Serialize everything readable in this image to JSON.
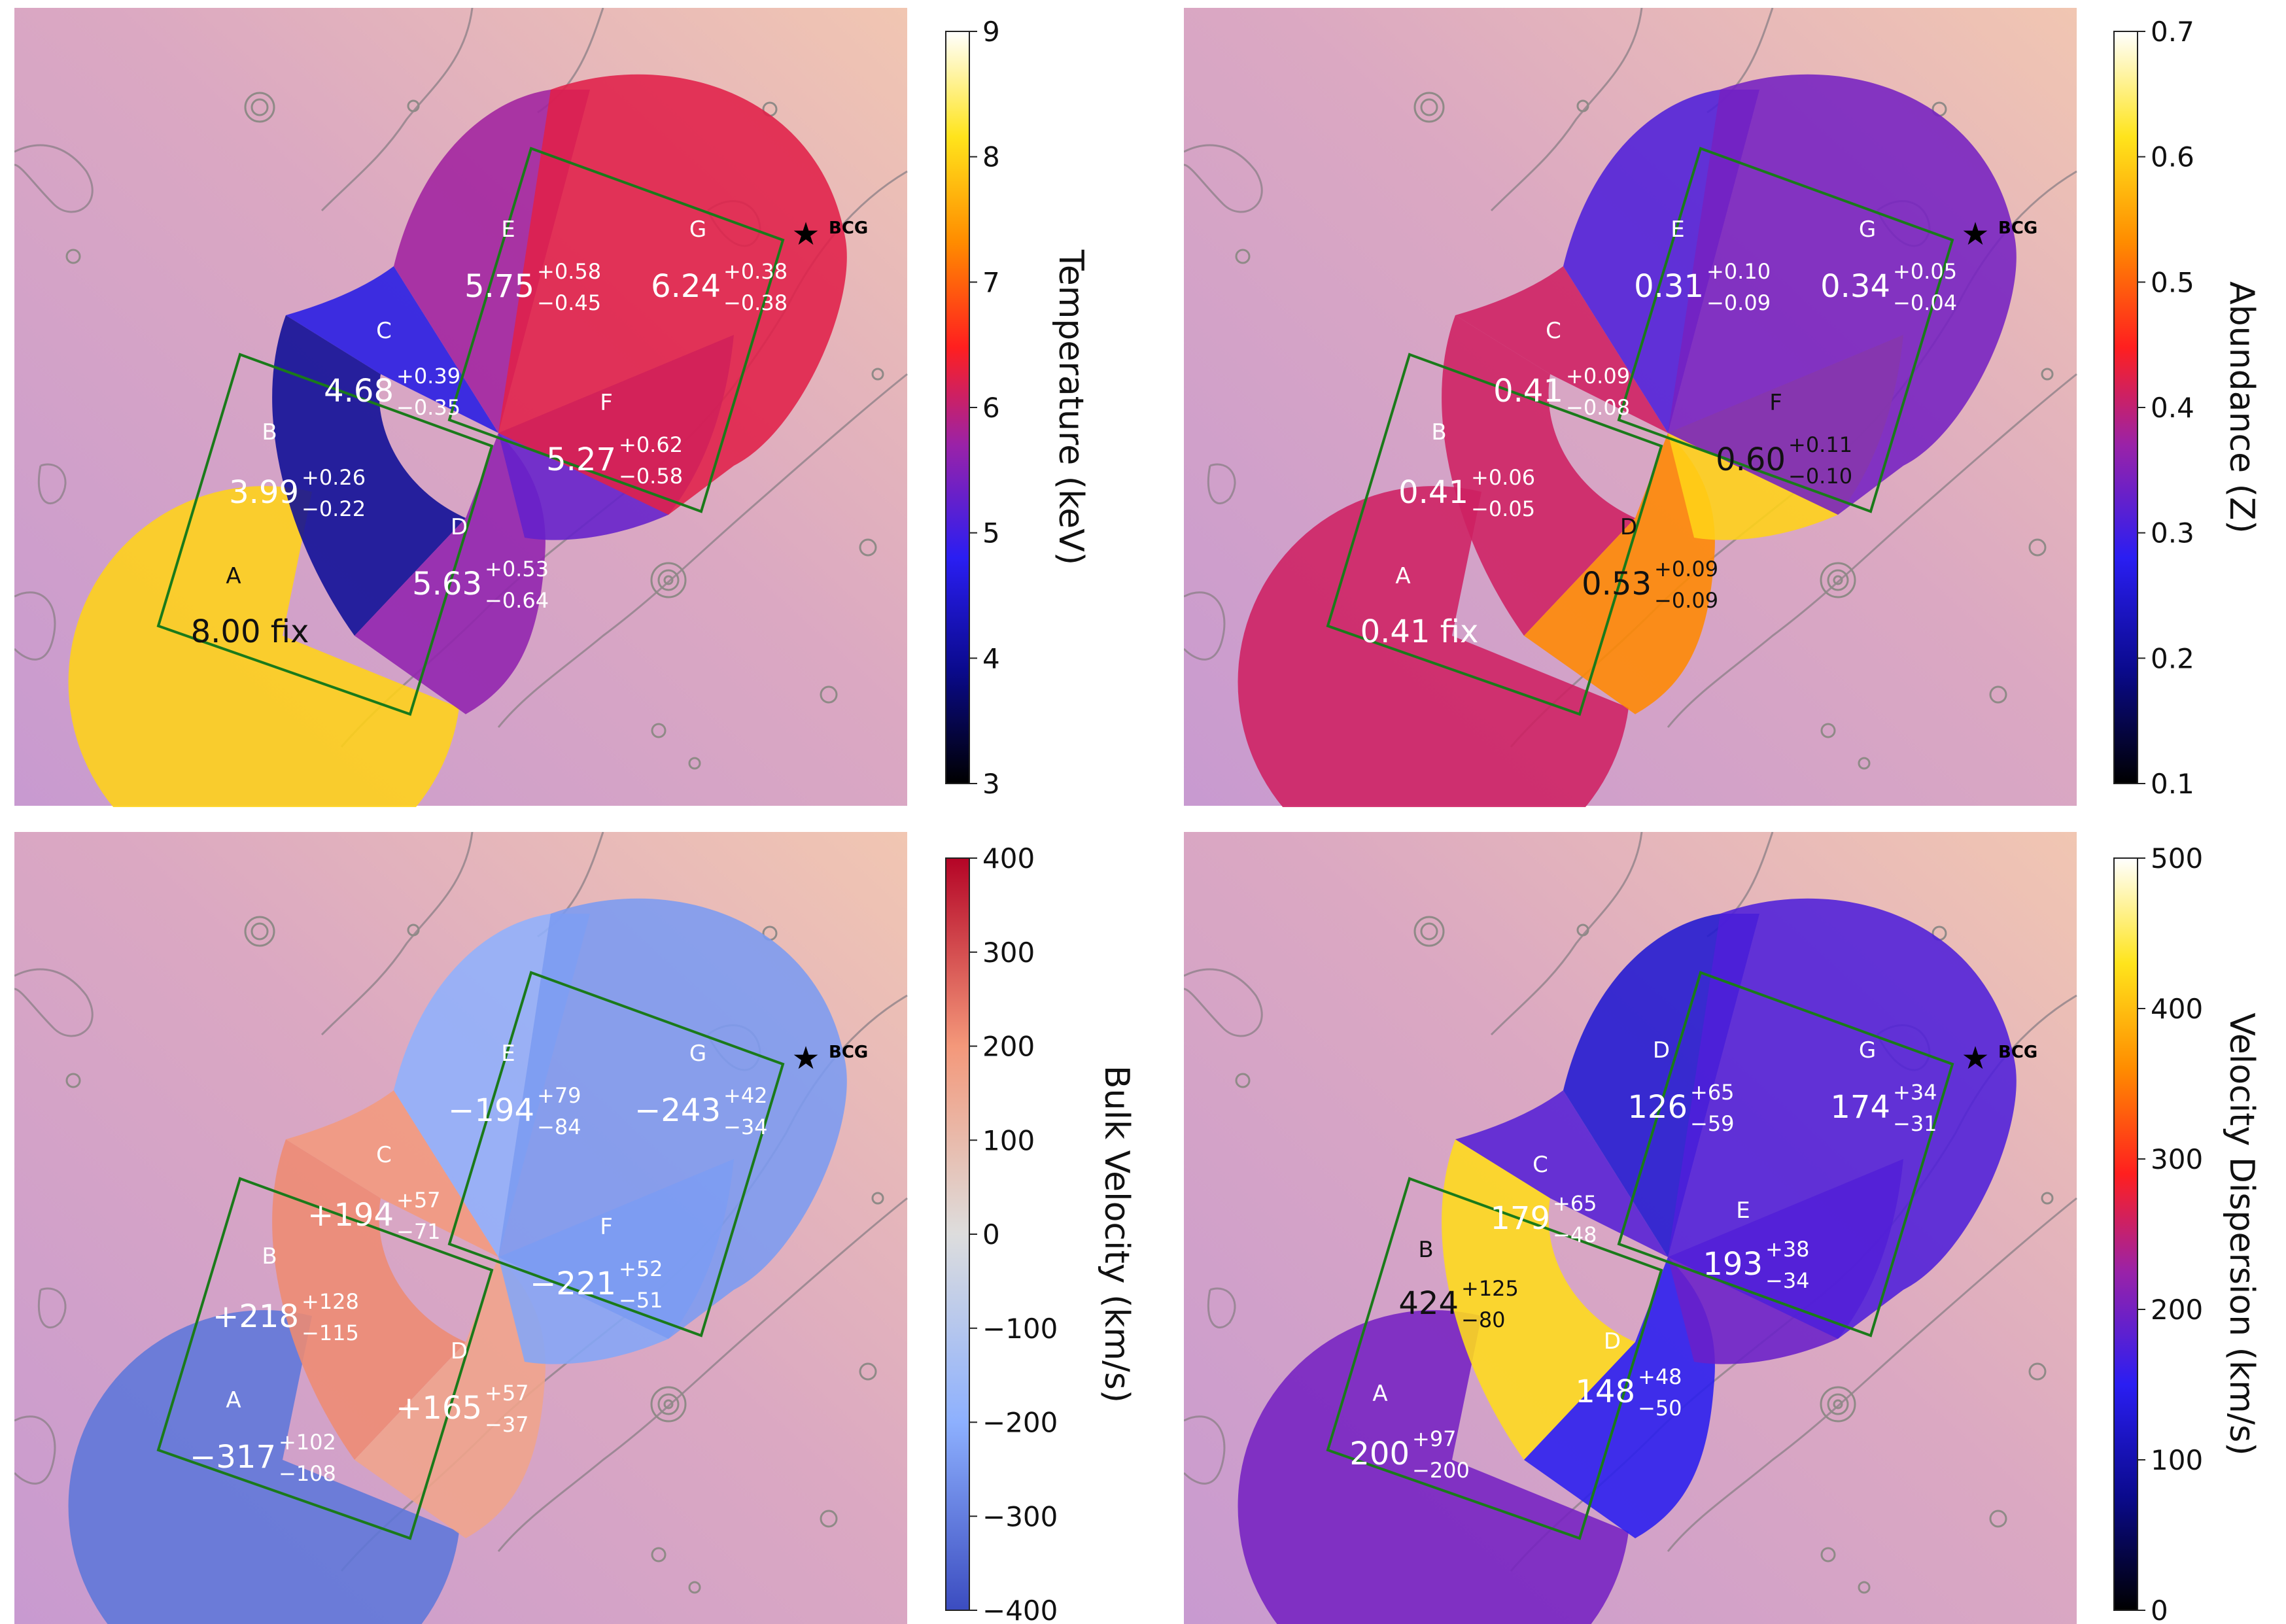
{
  "chart_data": [
    {
      "type": "region-map",
      "name": "temperature",
      "colorbar": {
        "label": "Temperature (keV)",
        "min": 3,
        "max": 9,
        "ticks": [
          "3",
          "4",
          "5",
          "6",
          "7",
          "8",
          "9"
        ],
        "cmap": "gnuplot2"
      },
      "bcg_label": "BCG",
      "regions": [
        {
          "id": "A",
          "label": "A",
          "value": 8.0,
          "text": "8.00 fix",
          "sup": "",
          "sub": "",
          "dark": true
        },
        {
          "id": "B",
          "label": "B",
          "value": 3.99,
          "text": "3.99",
          "sup": "+0.26",
          "sub": "−0.22",
          "dark": false
        },
        {
          "id": "C",
          "label": "C",
          "value": 4.68,
          "text": "4.68",
          "sup": "+0.39",
          "sub": "−0.35",
          "dark": false
        },
        {
          "id": "D",
          "label": "D",
          "value": 5.63,
          "text": "5.63",
          "sup": "+0.53",
          "sub": "−0.64",
          "dark": false
        },
        {
          "id": "E",
          "label": "E",
          "value": 5.75,
          "text": "5.75",
          "sup": "+0.58",
          "sub": "−0.45",
          "dark": false
        },
        {
          "id": "F",
          "label": "F",
          "value": 5.27,
          "text": "5.27",
          "sup": "+0.62",
          "sub": "−0.58",
          "dark": false
        },
        {
          "id": "G",
          "label": "G",
          "value": 6.24,
          "text": "6.24",
          "sup": "+0.38",
          "sub": "−0.38",
          "dark": false
        }
      ]
    },
    {
      "type": "region-map",
      "name": "abundance",
      "colorbar": {
        "label": "Abundance (Z)",
        "min": 0.1,
        "max": 0.7,
        "ticks": [
          "0.1",
          "0.2",
          "0.3",
          "0.4",
          "0.5",
          "0.6",
          "0.7"
        ],
        "cmap": "gnuplot2"
      },
      "bcg_label": "BCG",
      "regions": [
        {
          "id": "A",
          "label": "A",
          "value": 0.41,
          "text": "0.41 fix",
          "sup": "",
          "sub": "",
          "dark": false
        },
        {
          "id": "B",
          "label": "B",
          "value": 0.41,
          "text": "0.41",
          "sup": "+0.06",
          "sub": "−0.05",
          "dark": false
        },
        {
          "id": "C",
          "label": "C",
          "value": 0.41,
          "text": "0.41",
          "sup": "+0.09",
          "sub": "−0.08",
          "dark": false
        },
        {
          "id": "D",
          "label": "D",
          "value": 0.53,
          "text": "0.53",
          "sup": "+0.09",
          "sub": "−0.09",
          "dark": true
        },
        {
          "id": "E",
          "label": "E",
          "value": 0.31,
          "text": "0.31",
          "sup": "+0.10",
          "sub": "−0.09",
          "dark": false
        },
        {
          "id": "F",
          "label": "F",
          "value": 0.6,
          "text": "0.60",
          "sup": "+0.11",
          "sub": "−0.10",
          "dark": true
        },
        {
          "id": "G",
          "label": "G",
          "value": 0.34,
          "text": "0.34",
          "sup": "+0.05",
          "sub": "−0.04",
          "dark": false
        }
      ]
    },
    {
      "type": "region-map",
      "name": "bulk_velocity",
      "colorbar": {
        "label": "Bulk Velocity (km/s)",
        "min": -400,
        "max": 400,
        "ticks": [
          "−400",
          "−300",
          "−200",
          "−100",
          "0",
          "100",
          "200",
          "300",
          "400"
        ],
        "cmap": "coolwarm"
      },
      "bcg_label": "BCG",
      "regions": [
        {
          "id": "A",
          "label": "A",
          "value": -317,
          "text": "−317",
          "sup": "+102",
          "sub": "−108",
          "dark": false
        },
        {
          "id": "B",
          "label": "B",
          "value": 218,
          "text": "+218",
          "sup": "+128",
          "sub": "−115",
          "dark": false
        },
        {
          "id": "C",
          "label": "C",
          "value": 194,
          "text": "+194",
          "sup": "+57",
          "sub": "−71",
          "dark": false
        },
        {
          "id": "D",
          "label": "D",
          "value": 165,
          "text": "+165",
          "sup": "+57",
          "sub": "−37",
          "dark": false
        },
        {
          "id": "E",
          "label": "E",
          "value": -194,
          "text": "−194",
          "sup": "+79",
          "sub": "−84",
          "dark": false
        },
        {
          "id": "F",
          "label": "F",
          "value": -221,
          "text": "−221",
          "sup": "+52",
          "sub": "−51",
          "dark": false
        },
        {
          "id": "G",
          "label": "G",
          "value": -243,
          "text": "−243",
          "sup": "+42",
          "sub": "−34",
          "dark": false
        }
      ]
    },
    {
      "type": "region-map",
      "name": "velocity_dispersion",
      "colorbar": {
        "label": "Velocity Dispersion (km/s)",
        "min": 0,
        "max": 500,
        "ticks": [
          "0",
          "100",
          "200",
          "300",
          "400",
          "500"
        ],
        "cmap": "gnuplot2"
      },
      "bcg_label": "BCG",
      "regions": [
        {
          "id": "A",
          "label": "A",
          "value": 200,
          "text": "200",
          "sup": "+97",
          "sub": "−200",
          "dark": false
        },
        {
          "id": "B",
          "label": "B",
          "value": 424,
          "text": "424",
          "sup": "+125",
          "sub": "−80",
          "dark": true
        },
        {
          "id": "C",
          "label": "C",
          "value": 179,
          "text": "179",
          "sup": "+65",
          "sub": "−48",
          "dark": false
        },
        {
          "id": "D",
          "label": "D",
          "value": 148,
          "text": "148",
          "sup": "+48",
          "sub": "−50",
          "dark": false
        },
        {
          "id": "E",
          "label": "E",
          "value": 193,
          "text": "193",
          "sup": "+38",
          "sub": "−34",
          "dark": false
        },
        {
          "id": "D2",
          "label": "D",
          "value": 126,
          "text": "126",
          "sup": "+65",
          "sub": "−59",
          "dark": false
        },
        {
          "id": "G",
          "label": "G",
          "value": 174,
          "text": "174",
          "sup": "+34",
          "sub": "−31",
          "dark": false
        }
      ]
    }
  ]
}
